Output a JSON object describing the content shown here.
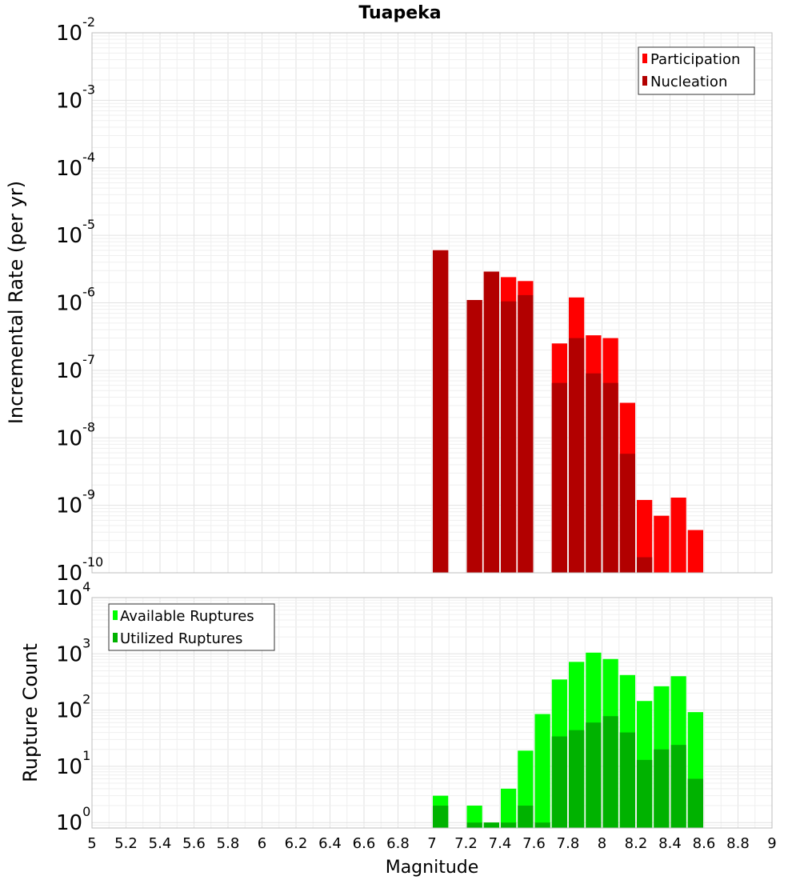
{
  "chart_data": [
    {
      "type": "bar",
      "title": "Tuapeka",
      "ylabel": "Incremental Rate (per yr)",
      "yscale": "log",
      "ylim": [
        1e-10,
        0.01
      ],
      "xlim": [
        5,
        9
      ],
      "bar_width": 0.1,
      "legend_position": "top-right",
      "series": [
        {
          "name": "Participation",
          "color": "#ff0000",
          "x": [
            7.05,
            7.25,
            7.35,
            7.45,
            7.55,
            7.75,
            7.85,
            7.95,
            8.05,
            8.15,
            8.25,
            8.35,
            8.45,
            8.55
          ],
          "values": [
            6e-06,
            1.1e-06,
            2.9e-06,
            2.4e-06,
            2.1e-06,
            2.5e-07,
            1.2e-06,
            3.3e-07,
            3e-07,
            3.3e-08,
            1.2e-09,
            7e-10,
            1.3e-09,
            4.3e-10
          ]
        },
        {
          "name": "Nucleation",
          "color": "#b20000",
          "x": [
            7.05,
            7.25,
            7.35,
            7.45,
            7.55,
            7.75,
            7.85,
            7.95,
            8.05,
            8.15,
            8.25
          ],
          "values": [
            6e-06,
            1.1e-06,
            2.9e-06,
            1.05e-06,
            1.3e-06,
            6.5e-08,
            3e-07,
            9e-08,
            6.5e-08,
            5.8e-09,
            1.7e-10
          ]
        }
      ],
      "yticks": [
        "10^-10",
        "10^-9",
        "10^-8",
        "10^-7",
        "10^-6",
        "10^-5",
        "10^-4",
        "10^-3",
        "10^-2"
      ]
    },
    {
      "type": "bar",
      "ylabel": "Rupture Count",
      "xlabel": "Magnitude",
      "yscale": "log",
      "ylim": [
        0.8,
        10000
      ],
      "xlim": [
        5,
        9
      ],
      "bar_width": 0.1,
      "legend_position": "top-left",
      "series": [
        {
          "name": "Available Ruptures",
          "color": "#00ff00",
          "x": [
            7.05,
            7.25,
            7.35,
            7.45,
            7.55,
            7.65,
            7.75,
            7.85,
            7.95,
            8.05,
            8.15,
            8.25,
            8.35,
            8.45,
            8.55
          ],
          "values": [
            3,
            2,
            1,
            4,
            19,
            85,
            350,
            720,
            1050,
            810,
            420,
            145,
            265,
            400,
            92
          ]
        },
        {
          "name": "Utilized Ruptures",
          "color": "#00b200",
          "x": [
            7.05,
            7.25,
            7.35,
            7.45,
            7.55,
            7.65,
            7.75,
            7.85,
            7.95,
            8.05,
            8.15,
            8.25,
            8.35,
            8.45,
            8.55
          ],
          "values": [
            2,
            1,
            1,
            1,
            2,
            1,
            34,
            44,
            60,
            78,
            40,
            13,
            20,
            24,
            6
          ]
        }
      ],
      "yticks": [
        "10^0",
        "10^1",
        "10^2",
        "10^3",
        "10^4"
      ],
      "xticks": [
        "5",
        "5.2",
        "5.4",
        "5.6",
        "5.8",
        "6",
        "6.2",
        "6.4",
        "6.6",
        "6.8",
        "7",
        "7.2",
        "7.4",
        "7.6",
        "7.8",
        "8",
        "8.2",
        "8.4",
        "8.6",
        "8.8",
        "9"
      ]
    }
  ]
}
